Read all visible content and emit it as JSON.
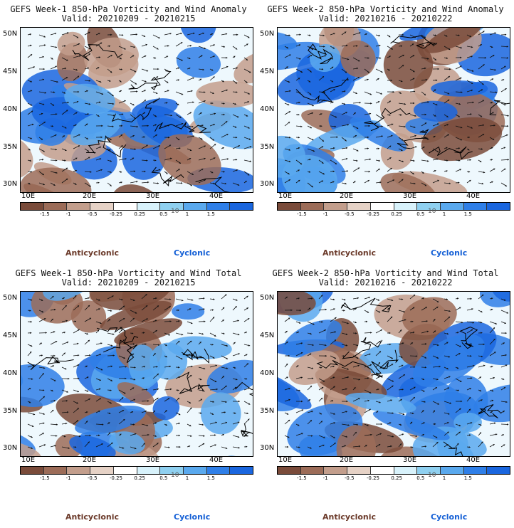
{
  "panels": [
    {
      "title": "GEFS Week-1 850-hPa Vorticity and Wind Anomaly",
      "valid": "Valid: 20210209 - 20210215",
      "seed": 11
    },
    {
      "title": "GEFS Week-2 850-hPa Vorticity and Wind Anomaly",
      "valid": "Valid: 20210216 - 20210222",
      "seed": 23
    },
    {
      "title": "GEFS Week-1 850-hPa Vorticity and Wind Total",
      "valid": "Valid: 20210209 - 20210215",
      "seed": 37
    },
    {
      "title": "GEFS Week-2 850-hPa Vorticity and Wind Total",
      "valid": "Valid: 20210216 - 20210222",
      "seed": 51
    }
  ],
  "axes": {
    "lat_labels": [
      "50N",
      "45N",
      "40N",
      "35N",
      "30N"
    ],
    "lon_labels": [
      "10E",
      "20E",
      "30E",
      "40E"
    ]
  },
  "colorbar": {
    "labels": [
      "-1.5",
      "-1",
      "-0.5",
      "-0.25",
      "0.25",
      "0.5",
      "1",
      "1.5"
    ],
    "scale_note": "10",
    "colors": [
      "#7a4b3a",
      "#9c6c58",
      "#c39e8c",
      "#e6d2c6",
      "#ffffff",
      "#d8f2fb",
      "#8fd0f0",
      "#5aa9ee",
      "#2f7fe8",
      "#1a66df"
    ]
  },
  "legend": {
    "anticyclonic": "Anticyclonic",
    "cyclonic": "Cyclonic"
  }
}
